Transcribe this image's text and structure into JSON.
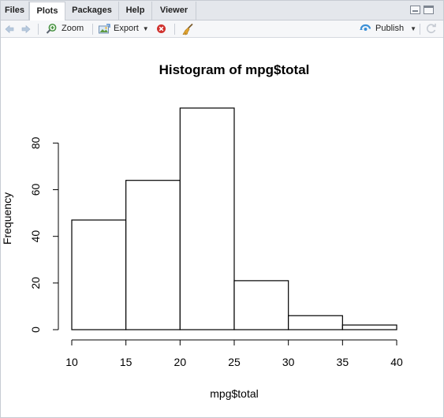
{
  "tabs": [
    {
      "label": "Files",
      "active": false
    },
    {
      "label": "Plots",
      "active": true
    },
    {
      "label": "Packages",
      "active": false
    },
    {
      "label": "Help",
      "active": false
    },
    {
      "label": "Viewer",
      "active": false
    }
  ],
  "toolbar": {
    "zoom_label": "Zoom",
    "export_label": "Export",
    "publish_label": "Publish",
    "icons": {
      "back": "arrow-left-icon",
      "forward": "arrow-right-icon",
      "zoom": "magnifier-icon",
      "export": "image-export-icon",
      "remove": "remove-plot-icon",
      "clear": "broom-icon",
      "publish": "publish-icon",
      "refresh": "refresh-icon"
    }
  },
  "colors": {
    "tabbar_bg": "#e4e7ec",
    "toolbar_bg": "#f6f7f9",
    "publish_accent": "#3a8fd6",
    "remove_accent": "#d0312d"
  },
  "chart_data": {
    "type": "bar",
    "title": "Histogram of mpg$total",
    "xlabel": "mpg$total",
    "ylabel": "Frequency",
    "bins": [
      [
        10,
        15
      ],
      [
        15,
        20
      ],
      [
        20,
        25
      ],
      [
        25,
        30
      ],
      [
        30,
        35
      ],
      [
        35,
        40
      ]
    ],
    "values": [
      47,
      64,
      95,
      21,
      6,
      2
    ],
    "xlim": [
      10,
      40
    ],
    "ylim": [
      0,
      95
    ],
    "x_ticks": [
      10,
      15,
      20,
      25,
      30,
      35,
      40
    ],
    "y_ticks": [
      0,
      20,
      40,
      60,
      80
    ],
    "grid": false
  }
}
